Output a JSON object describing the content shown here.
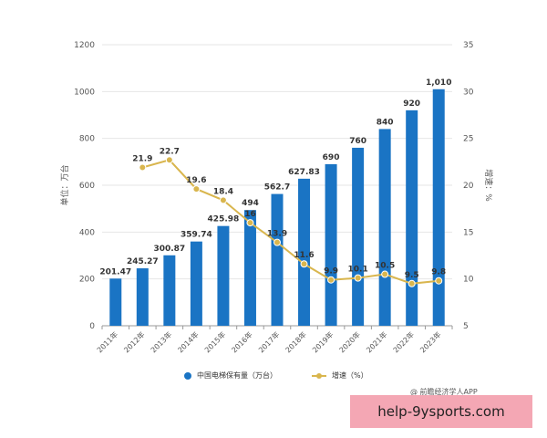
{
  "chart_data": {
    "type": "bar",
    "categories": [
      "2011年",
      "2012年",
      "2013年",
      "2014年",
      "2015年",
      "2016年",
      "2017年",
      "2018年",
      "2019年",
      "2020年",
      "2021年",
      "2022年",
      "2023年"
    ],
    "series": [
      {
        "name": "中国电梯保有量（万台）",
        "type": "bar",
        "axis": "left",
        "values": [
          201.47,
          245.27,
          300.87,
          359.74,
          425.98,
          494,
          562.7,
          627.83,
          690,
          760,
          840,
          920,
          1010
        ],
        "labels": [
          "201.47",
          "245.27",
          "300.87",
          "359.74",
          "425.98",
          "494",
          "562.7",
          "627.83",
          "690",
          "760",
          "840",
          "920",
          "1,010"
        ],
        "color": "#1a74c4"
      },
      {
        "name": "增速（%）",
        "type": "line",
        "axis": "right",
        "values": [
          null,
          21.9,
          22.7,
          19.6,
          18.4,
          16,
          13.9,
          11.6,
          9.9,
          10.1,
          10.5,
          9.5,
          9.8
        ],
        "labels": [
          "",
          "21.9",
          "22.7",
          "19.6",
          "18.4",
          "16",
          "13.9",
          "11.6",
          "9.9",
          "10.1",
          "10.5",
          "9.5",
          "9.8"
        ],
        "color": "#d9b64e"
      }
    ],
    "ylabel_left": "单位：万台",
    "ylabel_right": "增速：%",
    "ylim_left": [
      0,
      1200
    ],
    "ylim_right": [
      5,
      35
    ],
    "yticks_left": [
      "0",
      "200",
      "400",
      "600",
      "800",
      "1000",
      "1200"
    ],
    "yticks_right": [
      "5",
      "10",
      "15",
      "20",
      "25",
      "30",
      "35"
    ],
    "grid": true,
    "legend_position": "bottom"
  },
  "legend": {
    "bar_label": "中国电梯保有量（万台）",
    "line_label": "增速（%）"
  },
  "source_text": "@ 前瞻经济学人APP",
  "banner_text": "help-9ysports.com",
  "colors": {
    "bar": "#1a74c4",
    "line": "#d9b64e",
    "grid": "#e6e6e6",
    "banner": "#f4a7b4"
  }
}
